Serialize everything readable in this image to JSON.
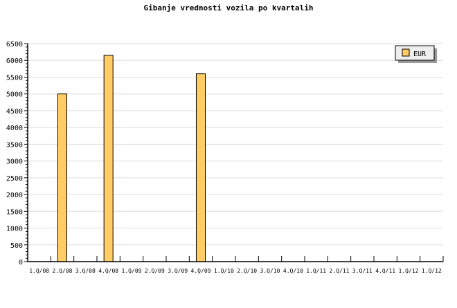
{
  "chart_data": {
    "type": "bar",
    "title": "Gibanje vrednosti vozila po kvartalih",
    "categories": [
      "1.Q/08",
      "2.Q/08",
      "3.Q/08",
      "4.Q/08",
      "1.Q/09",
      "2.Q/09",
      "3.Q/09",
      "4.Q/09",
      "1.Q/10",
      "2.Q/10",
      "3.Q/10",
      "4.Q/10",
      "1.Q/11",
      "2.Q/11",
      "3.Q/11",
      "4.Q/11",
      "1.Q/12",
      "1.Q/12"
    ],
    "series": [
      {
        "name": "EUR",
        "values": [
          null,
          5000,
          null,
          6150,
          null,
          null,
          null,
          5600,
          null,
          null,
          null,
          null,
          null,
          null,
          null,
          null,
          null,
          null
        ],
        "color": "#ffcc66"
      }
    ],
    "ylim": [
      0,
      6500
    ],
    "yticks": [
      0,
      500,
      1000,
      1500,
      2000,
      2500,
      3000,
      3500,
      4000,
      4500,
      5000,
      5500,
      6000,
      6500
    ],
    "grid": true,
    "legend": "top-right"
  }
}
